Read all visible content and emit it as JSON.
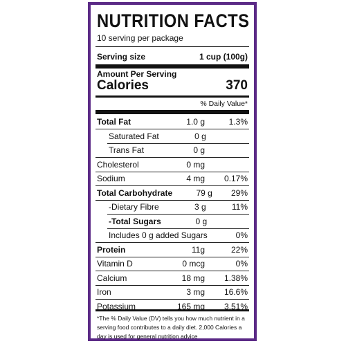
{
  "label": {
    "title": "NUTRITION FACTS",
    "servings_per_package": "10 serving per package",
    "serving_size_label": "Serving size",
    "serving_size_value": "1 cup (100g)",
    "amount_per_serving": "Amount Per Serving",
    "calories_label": "Calories",
    "calories_value": "370",
    "daily_value_header": "% Daily Value*",
    "border_color": "#5b2a86",
    "nutrients": [
      {
        "name": "Total Fat",
        "amount": "1.0 g",
        "dv": "1.3%",
        "bold": true,
        "indent": false
      },
      {
        "name": "Saturated Fat",
        "amount": "0 g",
        "dv": "",
        "bold": false,
        "indent": true
      },
      {
        "name": "Trans Fat",
        "amount": "0 g",
        "dv": "",
        "bold": false,
        "indent": true
      },
      {
        "name": "Cholesterol",
        "amount": "0 mg",
        "dv": "",
        "bold": false,
        "indent": false
      },
      {
        "name": "Sodium",
        "amount": "4 mg",
        "dv": "0.17%",
        "bold": false,
        "indent": false
      },
      {
        "name": "Total Carbohydrate",
        "amount": "79 g",
        "dv": "29%",
        "bold": true,
        "indent": false
      },
      {
        "name": "-Dietary Fibre",
        "amount": "3 g",
        "dv": "11%",
        "bold": false,
        "indent": true
      },
      {
        "name": "-Total Sugars",
        "amount": "0 g",
        "dv": "",
        "bold": true,
        "indent": true
      },
      {
        "name": "Includes 0 g added Sugars",
        "amount": "",
        "dv": "0%",
        "bold": false,
        "indent": true
      },
      {
        "name": "Protein",
        "amount": "11g",
        "dv": "22%",
        "bold": true,
        "indent": false
      },
      {
        "name": "Vitamin D",
        "amount": "0 mcg",
        "dv": "0%",
        "bold": false,
        "indent": false
      },
      {
        "name": "Calcium",
        "amount": "18 mg",
        "dv": "1.38%",
        "bold": false,
        "indent": false
      },
      {
        "name": "Iron",
        "amount": "3 mg",
        "dv": "16.6%",
        "bold": false,
        "indent": false
      },
      {
        "name": "Potassium",
        "amount": "165 mg",
        "dv": "3.51%",
        "bold": false,
        "indent": false
      }
    ],
    "footnote": "*The % Daily Value (DV) tells you how much nutrient in a serving food contributes to a daily diet. 2,000 Calories a day is used for general nutrition advice"
  }
}
